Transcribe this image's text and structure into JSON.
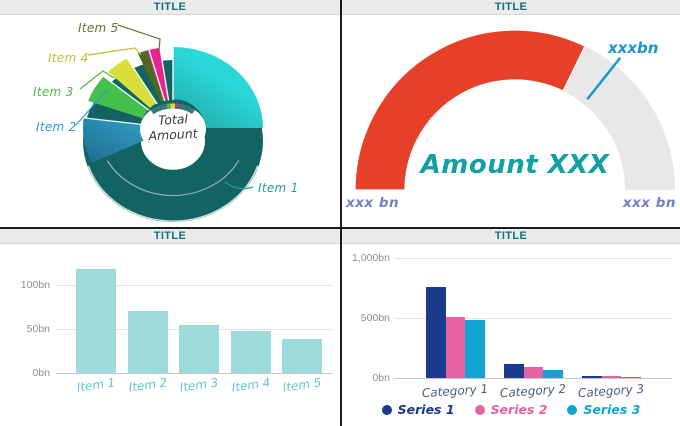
{
  "chart_data": [
    {
      "type": "pie",
      "title": "TITLE",
      "center_label": {
        "line1": "Total",
        "line2": "Amount"
      },
      "slices": [
        {
          "label": "Item 1",
          "pct": 77,
          "color": "#1fa0a0",
          "label_color": "#2a9d9d"
        },
        {
          "label": "Item 2",
          "pct": 9,
          "color": "#2e9ecd",
          "label_color": "#2b9ed0"
        },
        {
          "label": "Item 3",
          "pct": 5.5,
          "color": "#45c04d",
          "label_color": "#4db847"
        },
        {
          "label": "Item 4",
          "pct": 4.2,
          "color": "#dade3c",
          "label_color": "#b5c531"
        },
        {
          "label": "Item 5",
          "pct": 2,
          "color": "#4b6b22",
          "label_color": "#5c7a2e"
        },
        {
          "label": "",
          "pct": 2.3,
          "color": "#e5258b",
          "label_color": "#e5258b"
        }
      ]
    },
    {
      "type": "gauge",
      "title": "TITLE",
      "value_label": "Amount XXX",
      "marker_label": "xxxbn",
      "min_label": "xxx bn",
      "max_label": "xxx bn",
      "fill_fraction": 0.644,
      "marker_fraction": 0.714,
      "colors": {
        "fill": "#e6402b",
        "track": "#e8e8e8",
        "marker": "#1896d6",
        "value_text": "#12a0a4",
        "endpoint_text": "#7181c4"
      }
    },
    {
      "type": "bar",
      "title": "TITLE",
      "categories": [
        "Item 1",
        "Item 2",
        "Item 3",
        "Item 4",
        "Item 5"
      ],
      "values": [
        118,
        71,
        55,
        48,
        39
      ],
      "unit": "bn",
      "yticks": [
        {
          "value": 0,
          "label": "0bn"
        },
        {
          "value": 50,
          "label": "50bn"
        },
        {
          "value": 100,
          "label": "100bn"
        }
      ],
      "ylim": [
        0,
        135
      ],
      "bar_color": "#9edcdc",
      "category_color": "#66c8c8",
      "grid": true
    },
    {
      "type": "bar",
      "title": "TITLE",
      "categories": [
        "Category 1",
        "Category 2",
        "Category 3"
      ],
      "series": [
        {
          "name": "Series 1",
          "color": "#1b3a8c",
          "values": [
            760,
            115,
            18
          ]
        },
        {
          "name": "Series 2",
          "color": "#e563a3",
          "values": [
            510,
            95,
            14
          ]
        },
        {
          "name": "Series 3",
          "color": "#12a3d3",
          "values": [
            480,
            65,
            12
          ]
        }
      ],
      "yticks": [
        {
          "value": 0,
          "label": "0bn"
        },
        {
          "value": 500,
          "label": "500bn"
        },
        {
          "value": 1000,
          "label": "1,000bn"
        }
      ],
      "ylim": [
        0,
        1000
      ],
      "category_color": "#4e5d82",
      "legend_position": "bottom",
      "grid": true
    }
  ]
}
